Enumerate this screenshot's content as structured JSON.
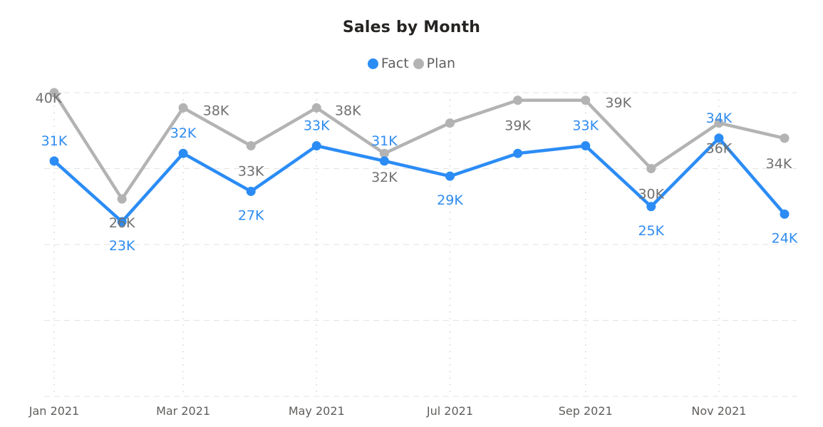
{
  "chart_data": {
    "type": "line",
    "title": "Sales by Month",
    "xlabel": "",
    "ylabel": "",
    "x": [
      "Jan 2021",
      "Feb 2021",
      "Mar 2021",
      "Apr 2021",
      "May 2021",
      "Jun 2021",
      "Jul 2021",
      "Aug 2021",
      "Sep 2021",
      "Oct 2021",
      "Nov 2021",
      "Dec 2021"
    ],
    "x_tick_labels": [
      "Jan 2021",
      "Mar 2021",
      "May 2021",
      "Jul 2021",
      "Sep 2021",
      "Nov 2021"
    ],
    "ylim": [
      0,
      40000
    ],
    "y_gridlines": [
      0,
      10000,
      20000,
      30000,
      40000
    ],
    "y_tick_labels_visible": false,
    "grid": true,
    "legend": "top-center",
    "series": [
      {
        "name": "Fact",
        "color": "#2B8CF5",
        "label_color": "#2F8CF0",
        "values": [
          31000,
          23000,
          32000,
          27000,
          33000,
          31000,
          29000,
          32000,
          33000,
          25000,
          34000,
          24000
        ],
        "data_labels": [
          "31K",
          "23K",
          "32K",
          "27K",
          "33K",
          "31K",
          "29K",
          null,
          "33K",
          "25K",
          "34K",
          "24K"
        ]
      },
      {
        "name": "Plan",
        "color": "#B3B3B3",
        "label_color": "#707070",
        "values": [
          40000,
          26000,
          38000,
          33000,
          38000,
          32000,
          36000,
          39000,
          39000,
          30000,
          36000,
          34000
        ],
        "data_labels": [
          "40K",
          "26K",
          "38K",
          "33K",
          "38K",
          "32K",
          null,
          "39K",
          "39K",
          "30K",
          "36K",
          "34K"
        ]
      }
    ]
  }
}
